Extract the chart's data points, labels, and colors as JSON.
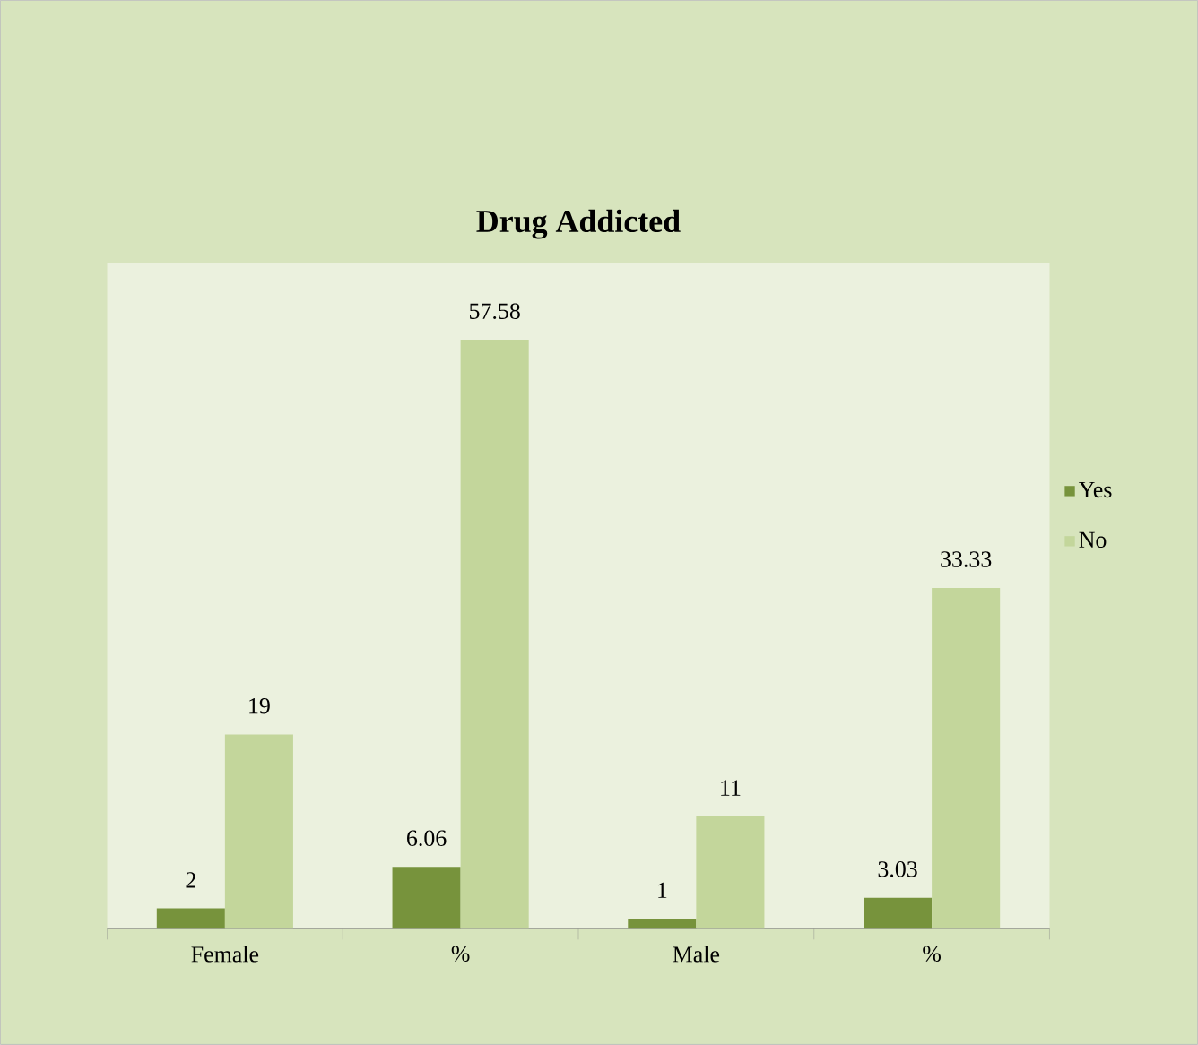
{
  "chart_data": {
    "type": "bar",
    "title": "**Drug Addicted**",
    "categories": [
      "Female",
      "%",
      "Male",
      "%"
    ],
    "series": [
      {
        "name": "Yes",
        "color": "#77933c",
        "values": [
          2,
          6.06,
          1,
          3.03
        ]
      },
      {
        "name": "No",
        "color": "#c3d69b",
        "values": [
          19,
          57.58,
          11,
          33.33
        ]
      }
    ],
    "data_labels": true,
    "legend": "right"
  }
}
